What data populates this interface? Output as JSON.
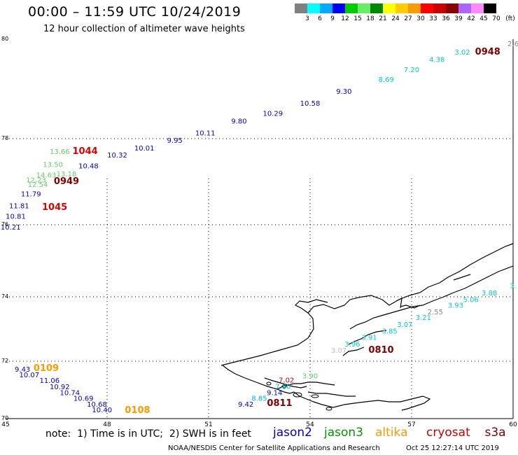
{
  "header": {
    "title": "00:00 – 11:59 UTC 10/24/2019",
    "subtitle": "12 hour collection of altimeter wave heights"
  },
  "legend": {
    "colors": [
      "#808080",
      "#00ffff",
      "#00aaff",
      "#0000ff",
      "#00cc00",
      "#66ee66",
      "#008800",
      "#ffff00",
      "#ffcc00",
      "#ff9900",
      "#ff0000",
      "#cc0000",
      "#880000",
      "#aa66ff",
      "#ff88ff",
      "#000000"
    ],
    "ticks": [
      "3",
      "6",
      "9",
      "12",
      "15",
      "18",
      "21",
      "24",
      "27",
      "30",
      "33",
      "36",
      "39",
      "42",
      "45",
      "70",
      "(ft)"
    ]
  },
  "map": {
    "lon_labels": [
      "45",
      "48",
      "51",
      "54",
      "57",
      "60"
    ],
    "lat_labels": [
      "70",
      "72",
      "74",
      "76",
      "78",
      "80"
    ],
    "satellite_colors": {
      "jason2": "#0000cc",
      "jason3": "#009900",
      "altika": "#ff9900",
      "cryosat": "#cc0000",
      "s3a": "#800000"
    },
    "swh_labels": [
      {
        "t": "2.6",
        "c": "#888888",
        "lon": 60.0,
        "lat": 79.86
      },
      {
        "t": "0948",
        "c": "#800000",
        "lon": 59.25,
        "lat": 79.69,
        "time": true
      },
      {
        "t": "3.02",
        "c": "#00cccc",
        "lon": 58.5,
        "lat": 79.69
      },
      {
        "t": "4.38",
        "c": "#00cccc",
        "lon": 57.75,
        "lat": 79.54
      },
      {
        "t": "7.20",
        "c": "#00cccc",
        "lon": 57.0,
        "lat": 79.34
      },
      {
        "t": "8.69",
        "c": "#00cccc",
        "lon": 56.25,
        "lat": 79.14
      },
      {
        "t": "9.30",
        "c": "#0000cc",
        "lon": 55.0,
        "lat": 78.9
      },
      {
        "t": "10.58",
        "c": "#0000cc",
        "lon": 54.0,
        "lat": 78.66
      },
      {
        "t": "10.29",
        "c": "#0000cc",
        "lon": 52.9,
        "lat": 78.46
      },
      {
        "t": "9.80",
        "c": "#0000cc",
        "lon": 51.9,
        "lat": 78.3
      },
      {
        "t": "10.11",
        "c": "#0000cc",
        "lon": 50.9,
        "lat": 78.06
      },
      {
        "t": "9.95",
        "c": "#0000cc",
        "lon": 50.0,
        "lat": 77.9
      },
      {
        "t": "10.01",
        "c": "#0000cc",
        "lon": 49.1,
        "lat": 77.72
      },
      {
        "t": "10.32",
        "c": "#0000cc",
        "lon": 48.3,
        "lat": 77.56
      },
      {
        "t": "1044",
        "c": "#dd0000",
        "lon": 47.35,
        "lat": 77.64,
        "time": true
      },
      {
        "t": "13.66",
        "c": "#66cc66",
        "lon": 46.6,
        "lat": 77.64
      },
      {
        "t": "10.48",
        "c": "#0000cc",
        "lon": 47.45,
        "lat": 77.31
      },
      {
        "t": "13.50",
        "c": "#66cc66",
        "lon": 46.4,
        "lat": 77.34
      },
      {
        "t": "14.63",
        "c": "#66cc66",
        "lon": 46.2,
        "lat": 77.1
      },
      {
        "t": "13.18",
        "c": "#66cc66",
        "lon": 46.8,
        "lat": 77.12
      },
      {
        "t": "12.23",
        "c": "#66cc66",
        "lon": 45.9,
        "lat": 76.98
      },
      {
        "t": "12.54",
        "c": "#66cc66",
        "lon": 45.95,
        "lat": 76.88
      },
      {
        "t": "0949",
        "c": "#800000",
        "lon": 46.8,
        "lat": 76.94,
        "time": true
      },
      {
        "t": "11.79",
        "c": "#0000cc",
        "lon": 45.75,
        "lat": 76.66
      },
      {
        "t": "11.81",
        "c": "#0000cc",
        "lon": 45.4,
        "lat": 76.38
      },
      {
        "t": "1045",
        "c": "#dd0000",
        "lon": 46.45,
        "lat": 76.34,
        "time": true
      },
      {
        "t": "10.81",
        "c": "#0000cc",
        "lon": 45.3,
        "lat": 76.14
      },
      {
        "t": "10.21",
        "c": "#0000cc",
        "lon": 45.15,
        "lat": 75.86
      },
      {
        "t": "3.",
        "c": "#00cccc",
        "lon": 60.0,
        "lat": 74.24
      },
      {
        "t": "3.88",
        "c": "#00cccc",
        "lon": 59.3,
        "lat": 74.04
      },
      {
        "t": "5.06",
        "c": "#00cccc",
        "lon": 58.75,
        "lat": 73.84
      },
      {
        "t": "3.93",
        "c": "#00cccc",
        "lon": 58.3,
        "lat": 73.66
      },
      {
        "t": "2.55",
        "c": "#888888",
        "lon": 57.7,
        "lat": 73.46
      },
      {
        "t": "3.21",
        "c": "#00cccc",
        "lon": 57.35,
        "lat": 73.28
      },
      {
        "t": "3.07",
        "c": "#00cccc",
        "lon": 56.8,
        "lat": 73.06
      },
      {
        "t": "3.85",
        "c": "#00cccc",
        "lon": 56.35,
        "lat": 72.86
      },
      {
        "t": "3.91",
        "c": "#00cccc",
        "lon": 55.75,
        "lat": 72.66
      },
      {
        "t": "3.96",
        "c": "#00cccc",
        "lon": 55.25,
        "lat": 72.46
      },
      {
        "t": "3.07",
        "c": "#bbbbdd",
        "lon": 54.85,
        "lat": 72.26
      },
      {
        "t": "0810",
        "c": "#800000",
        "lon": 56.1,
        "lat": 72.26,
        "time": true
      },
      {
        "t": "9.43",
        "c": "#0000cc",
        "lon": 45.5,
        "lat": 71.64
      },
      {
        "t": "0109",
        "c": "#ff9900",
        "lon": 46.2,
        "lat": 71.66,
        "time": true
      },
      {
        "t": "10.07",
        "c": "#0000cc",
        "lon": 45.7,
        "lat": 71.44
      },
      {
        "t": "11.06",
        "c": "#0000cc",
        "lon": 46.3,
        "lat": 71.24
      },
      {
        "t": "10.92",
        "c": "#0000cc",
        "lon": 46.6,
        "lat": 71.02
      },
      {
        "t": "10.74",
        "c": "#0000cc",
        "lon": 46.9,
        "lat": 70.82
      },
      {
        "t": "10.69",
        "c": "#0000cc",
        "lon": 47.3,
        "lat": 70.62
      },
      {
        "t": "10.68",
        "c": "#0000cc",
        "lon": 47.7,
        "lat": 70.42
      },
      {
        "t": "10.40",
        "c": "#0000cc",
        "lon": 47.85,
        "lat": 70.22
      },
      {
        "t": "0108",
        "c": "#ff9900",
        "lon": 48.9,
        "lat": 70.2,
        "time": true
      },
      {
        "t": "3.90",
        "c": "#66cc66",
        "lon": 54.0,
        "lat": 71.4
      },
      {
        "t": "7.02",
        "c": "#cc0000",
        "lon": 53.3,
        "lat": 71.26
      },
      {
        "t": "7.80",
        "c": "#00cccc",
        "lon": 53.2,
        "lat": 71.04
      },
      {
        "t": "9.14",
        "c": "#0000cc",
        "lon": 52.95,
        "lat": 70.82
      },
      {
        "t": "8.85",
        "c": "#00aaff",
        "lon": 52.5,
        "lat": 70.62
      },
      {
        "t": "9.42",
        "c": "#0000cc",
        "lon": 52.1,
        "lat": 70.42
      },
      {
        "t": "0811",
        "c": "#800000",
        "lon": 53.1,
        "lat": 70.44,
        "time": true
      }
    ]
  },
  "note": {
    "text": "note:  1) Time is in UTC;  2) SWH is in feet",
    "satellites": [
      {
        "label": "jason2",
        "color": "#0000cc"
      },
      {
        "label": "jason3",
        "color": "#009900"
      },
      {
        "label": "altika",
        "color": "#ff9900"
      },
      {
        "label": "cryosat",
        "color": "#cc0000"
      },
      {
        "label": "s3a",
        "color": "#800000"
      }
    ]
  },
  "footer": {
    "center": "NOAA/NESDIS Center for Satellite Applications and Research",
    "date": "Oct 25 12:27:14 UTC 2019"
  }
}
